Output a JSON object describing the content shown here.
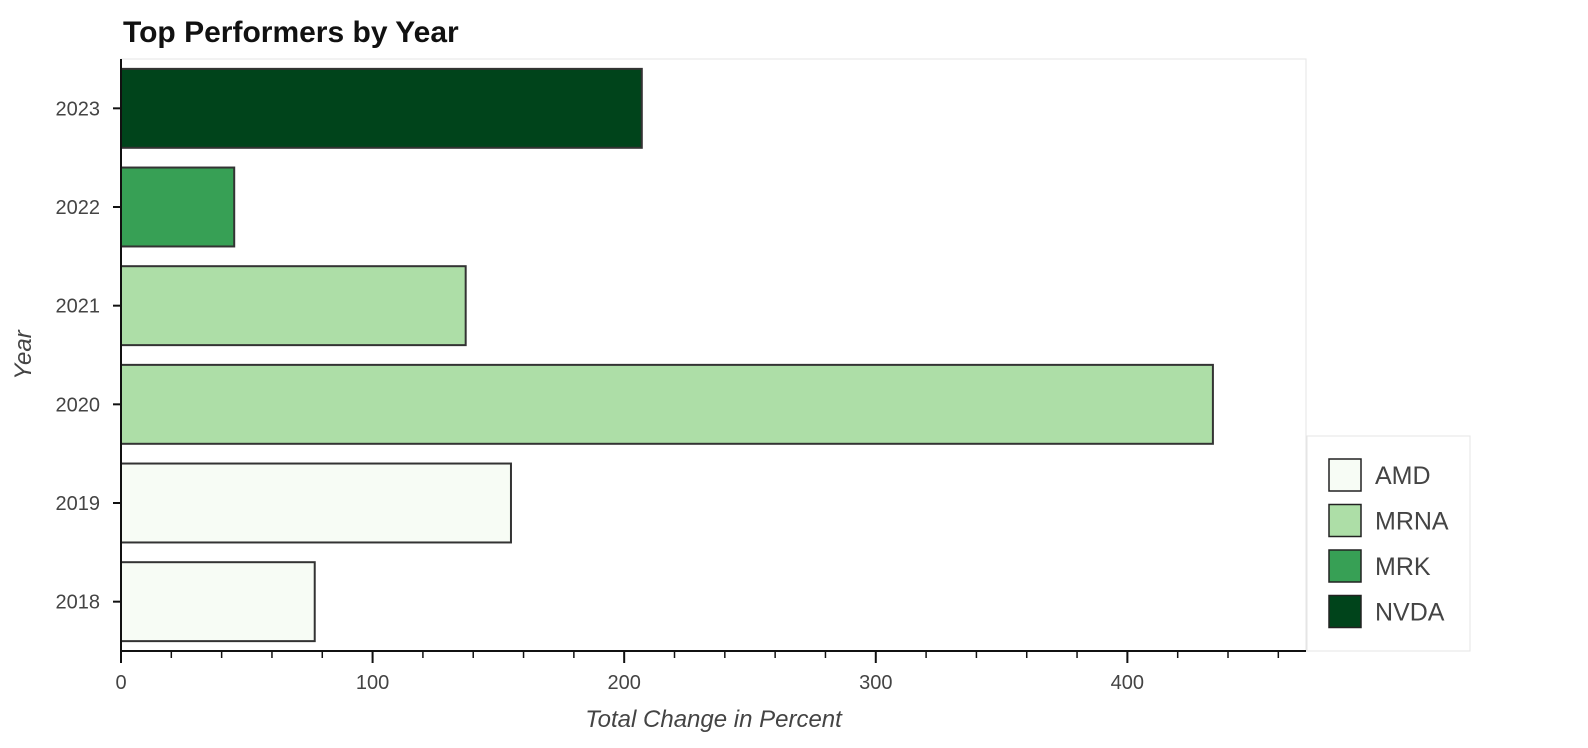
{
  "chart_data": {
    "type": "bar",
    "orientation": "horizontal",
    "title": "Top Performers by Year",
    "xlabel": "Total Change in Percent",
    "ylabel": "Year",
    "xlim": [
      0,
      471
    ],
    "x_ticks": [
      0,
      100,
      200,
      300,
      400
    ],
    "x_minor_step": 20,
    "grid": false,
    "legend_position": "bottom-right outside",
    "categories": [
      "2018",
      "2019",
      "2020",
      "2021",
      "2022",
      "2023"
    ],
    "bars": [
      {
        "year": "2018",
        "ticker": "AMD",
        "value": 77
      },
      {
        "year": "2019",
        "ticker": "AMD",
        "value": 155
      },
      {
        "year": "2020",
        "ticker": "MRNA",
        "value": 434
      },
      {
        "year": "2021",
        "ticker": "MRNA",
        "value": 137
      },
      {
        "year": "2022",
        "ticker": "MRK",
        "value": 45
      },
      {
        "year": "2023",
        "ticker": "NVDA",
        "value": 207
      }
    ],
    "legend": [
      {
        "name": "AMD",
        "color": "#f7fcf5"
      },
      {
        "name": "MRNA",
        "color": "#addea7"
      },
      {
        "name": "MRK",
        "color": "#37a055"
      },
      {
        "name": "NVDA",
        "color": "#00441b"
      }
    ]
  }
}
